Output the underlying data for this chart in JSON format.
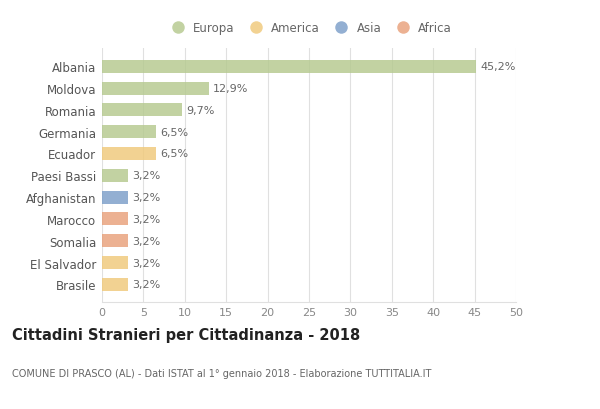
{
  "countries": [
    "Albania",
    "Moldova",
    "Romania",
    "Germania",
    "Ecuador",
    "Paesi Bassi",
    "Afghanistan",
    "Marocco",
    "Somalia",
    "El Salvador",
    "Brasile"
  ],
  "values": [
    45.2,
    12.9,
    9.7,
    6.5,
    6.5,
    3.2,
    3.2,
    3.2,
    3.2,
    3.2,
    3.2
  ],
  "labels": [
    "45,2%",
    "12,9%",
    "9,7%",
    "6,5%",
    "6,5%",
    "3,2%",
    "3,2%",
    "3,2%",
    "3,2%",
    "3,2%",
    "3,2%"
  ],
  "colors": [
    "#b5c98e",
    "#b5c98e",
    "#b5c98e",
    "#b5c98e",
    "#f0c97a",
    "#b5c98e",
    "#7b9ec9",
    "#e8a07a",
    "#e8a07a",
    "#f0c97a",
    "#f0c97a"
  ],
  "legend_labels": [
    "Europa",
    "America",
    "Asia",
    "Africa"
  ],
  "legend_colors": [
    "#b5c98e",
    "#f0c97a",
    "#7b9ec9",
    "#e8a07a"
  ],
  "title": "Cittadini Stranieri per Cittadinanza - 2018",
  "subtitle": "COMUNE DI PRASCO (AL) - Dati ISTAT al 1° gennaio 2018 - Elaborazione TUTTITALIA.IT",
  "xlim": [
    0,
    50
  ],
  "xticks": [
    0,
    5,
    10,
    15,
    20,
    25,
    30,
    35,
    40,
    45,
    50
  ],
  "background_color": "#ffffff",
  "grid_color": "#e0e0e0",
  "bar_height": 0.6,
  "bar_alpha": 0.82
}
